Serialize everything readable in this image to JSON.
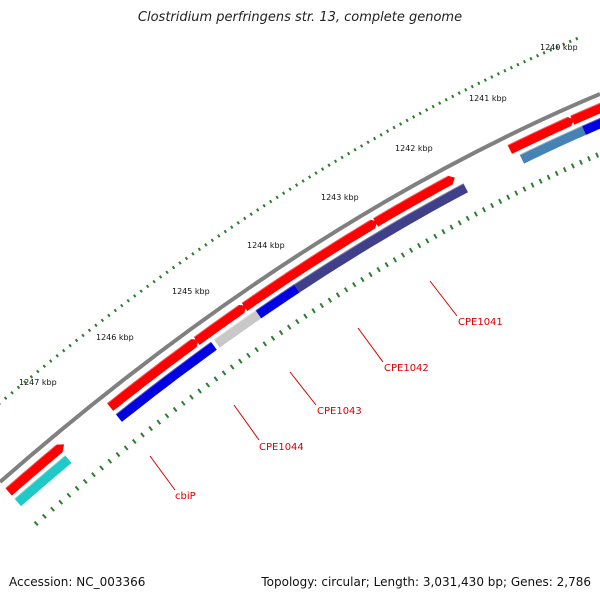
{
  "title": "Clostridium perfringens str. 13, complete genome",
  "footer": {
    "accession": "Accession: NC_003366",
    "summary": "Topology: circular; Length: 3,031,430 bp; Genes: 2,786"
  },
  "colors": {
    "backbone": "#808080",
    "tick_major": "#2e7d32",
    "tick_minor": "#2e7d32",
    "gene_red": "#ff0000",
    "gene_blue": "#0000e0",
    "gene_cyan": "#20c8c8",
    "gene_gray": "#c8c8c8",
    "gene_navy": "#40408a",
    "gene_steel": "#4682b4",
    "label_red": "#dd0000"
  },
  "scale_labels": [
    "1240 kbp",
    "1241 kbp",
    "1242 kbp",
    "1243 kbp",
    "1244 kbp",
    "1245 kbp",
    "1246 kbp",
    "1247 kbp"
  ],
  "gene_labels": [
    "CPE1041",
    "CPE1042",
    "CPE1043",
    "CPE1044",
    "cbiP"
  ]
}
